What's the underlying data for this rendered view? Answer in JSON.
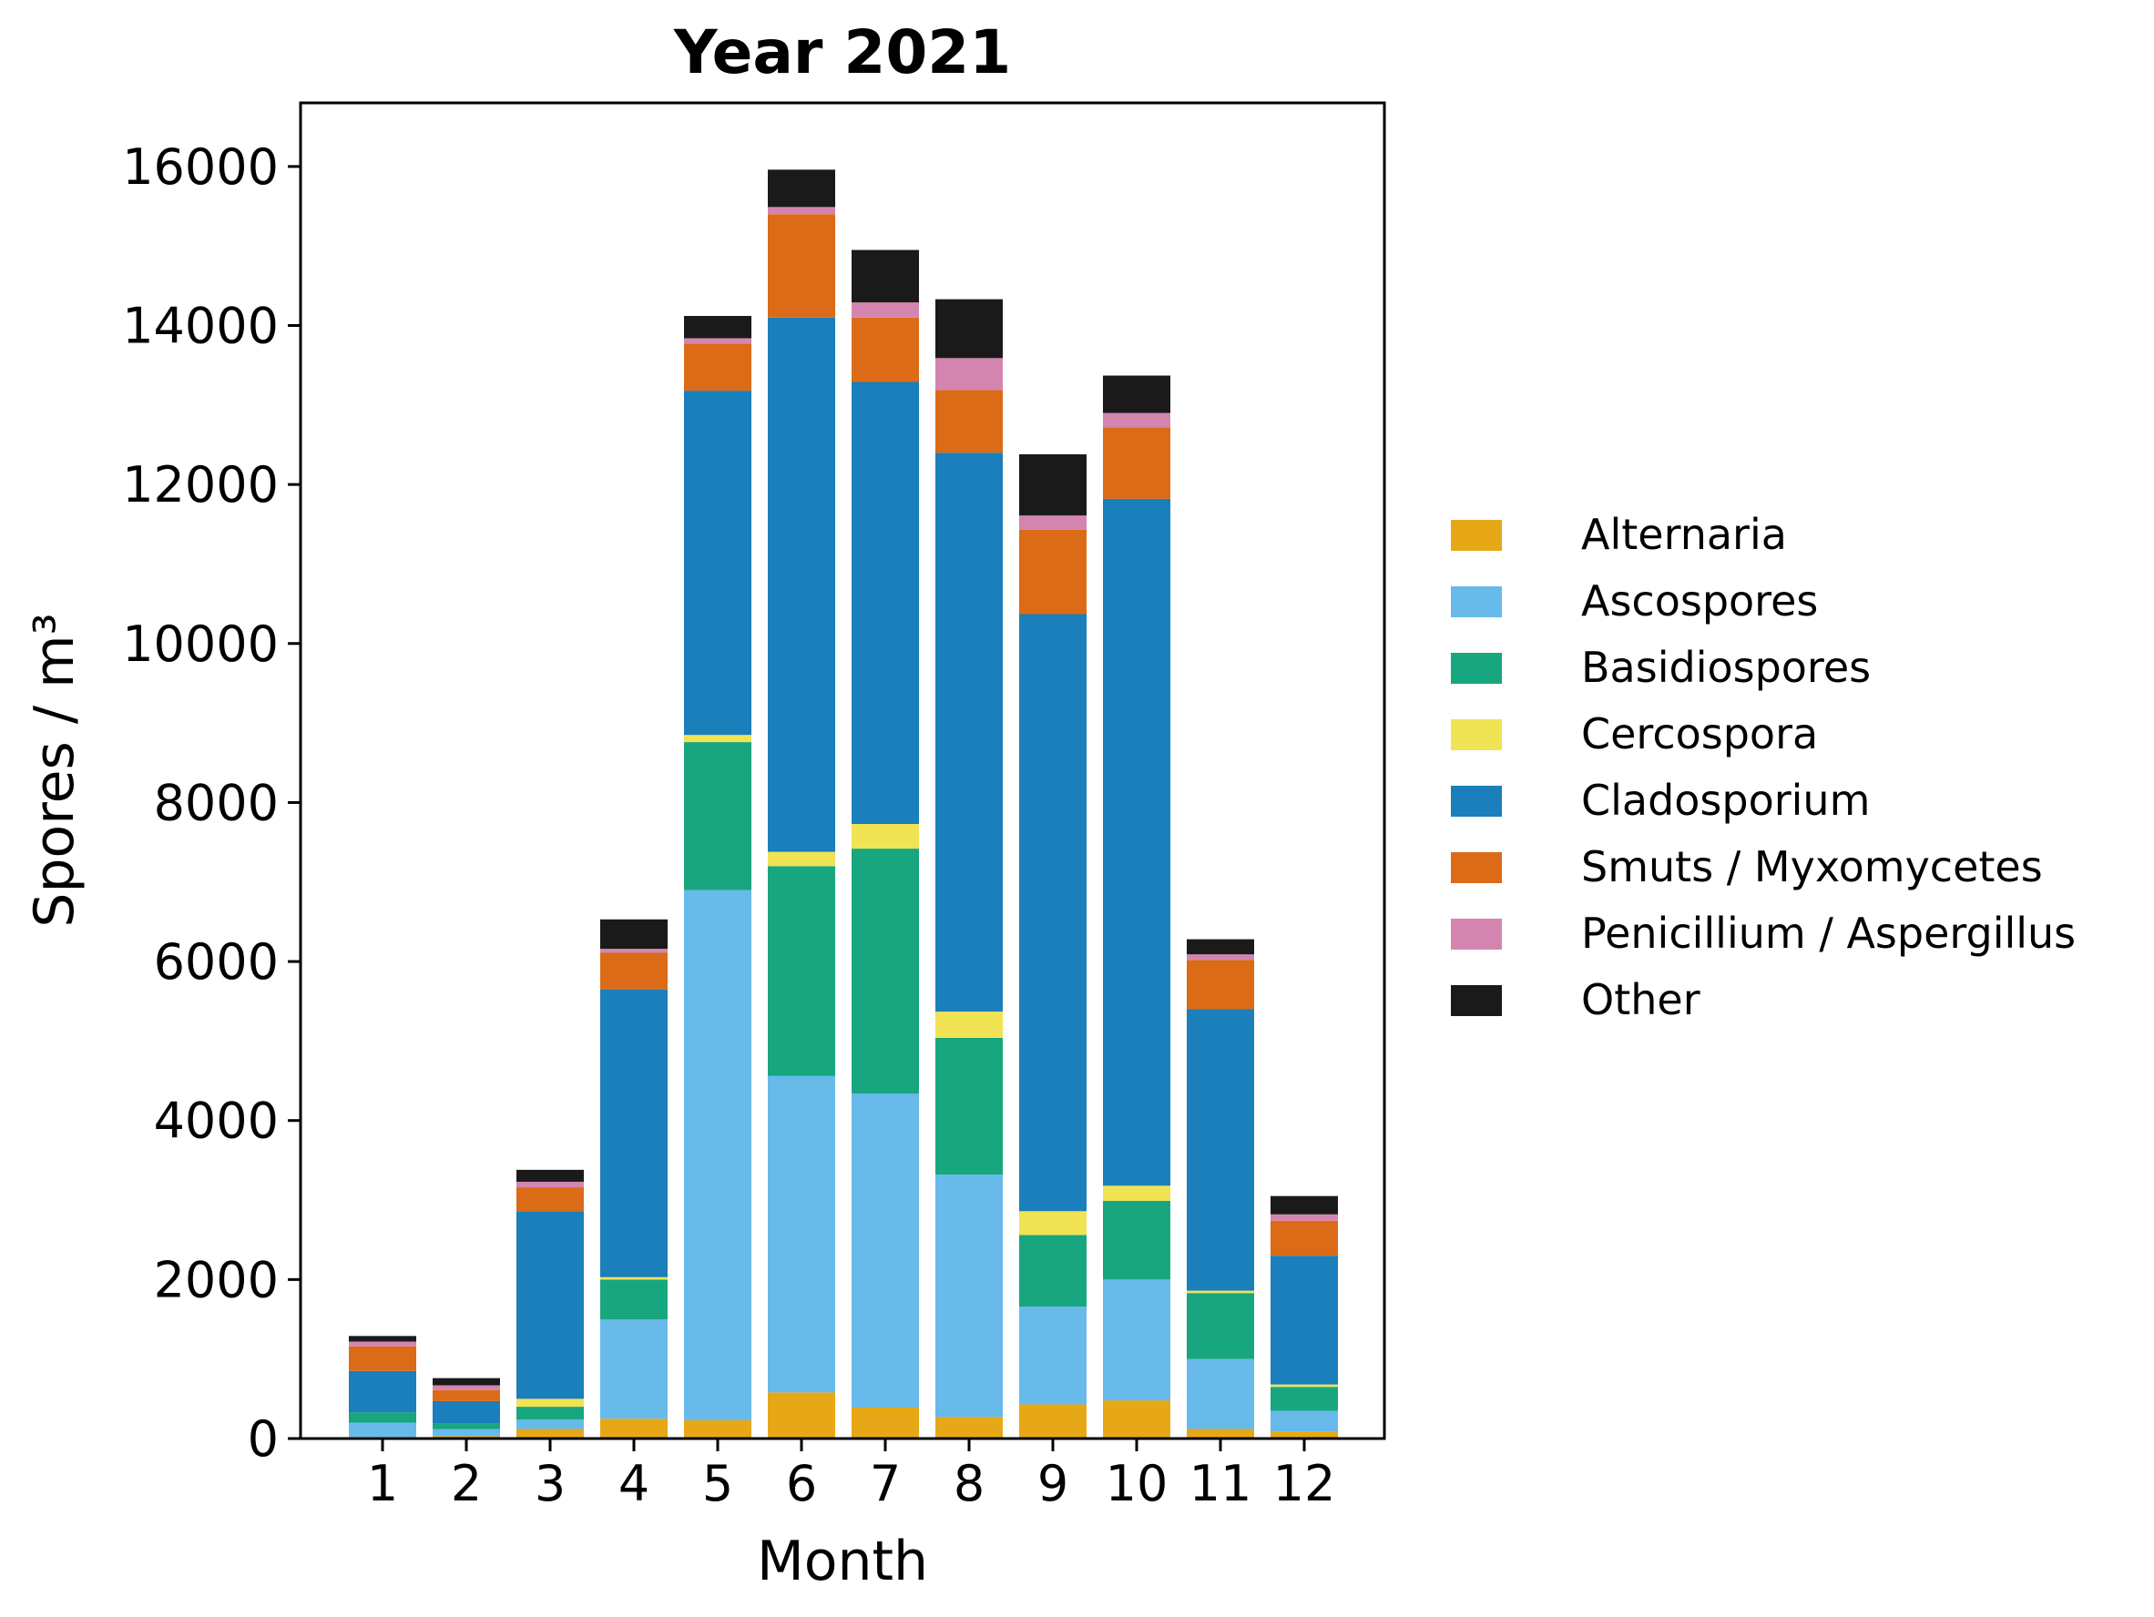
{
  "chart_data": {
    "type": "bar",
    "stacked": true,
    "title": "Year 2021",
    "xlabel": "Month",
    "ylabel": "Spores / m³",
    "ylim": [
      0,
      16800
    ],
    "yticks": [
      0,
      2000,
      4000,
      6000,
      8000,
      10000,
      12000,
      14000,
      16000
    ],
    "categories": [
      "1",
      "2",
      "3",
      "4",
      "5",
      "6",
      "7",
      "8",
      "9",
      "10",
      "11",
      "12"
    ],
    "legend_position": "right",
    "series": [
      {
        "name": "Alternaria",
        "color": "#E6A817",
        "values": [
          20,
          30,
          120,
          250,
          230,
          580,
          390,
          270,
          430,
          480,
          120,
          90
        ]
      },
      {
        "name": "Ascospores",
        "color": "#67BAEA",
        "values": [
          180,
          90,
          120,
          1250,
          6670,
          3980,
          3950,
          3050,
          1230,
          1520,
          880,
          260
        ]
      },
      {
        "name": "Basidiospores",
        "color": "#18A67E",
        "values": [
          130,
          70,
          160,
          500,
          1860,
          2640,
          3080,
          1720,
          900,
          990,
          830,
          300
        ]
      },
      {
        "name": "Cercospora",
        "color": "#F0E354",
        "values": [
          0,
          0,
          100,
          30,
          90,
          180,
          310,
          330,
          300,
          190,
          30,
          30
        ]
      },
      {
        "name": "Cladosporium",
        "color": "#1A7FBA",
        "values": [
          520,
          280,
          2360,
          3620,
          4330,
          6720,
          5560,
          7030,
          7510,
          8640,
          3540,
          1620
        ]
      },
      {
        "name": "Smuts / Myxomycetes",
        "color": "#DB6B17",
        "values": [
          310,
          140,
          300,
          460,
          590,
          1300,
          810,
          790,
          1060,
          900,
          620,
          440
        ]
      },
      {
        "name": "Penicillium / Aspergillus",
        "color": "#D385B0",
        "values": [
          60,
          60,
          70,
          50,
          70,
          90,
          190,
          400,
          180,
          180,
          70,
          80
        ]
      },
      {
        "name": "Other",
        "color": "#1A1A1A",
        "values": [
          70,
          90,
          150,
          370,
          280,
          470,
          660,
          740,
          770,
          470,
          190,
          230
        ]
      }
    ]
  }
}
